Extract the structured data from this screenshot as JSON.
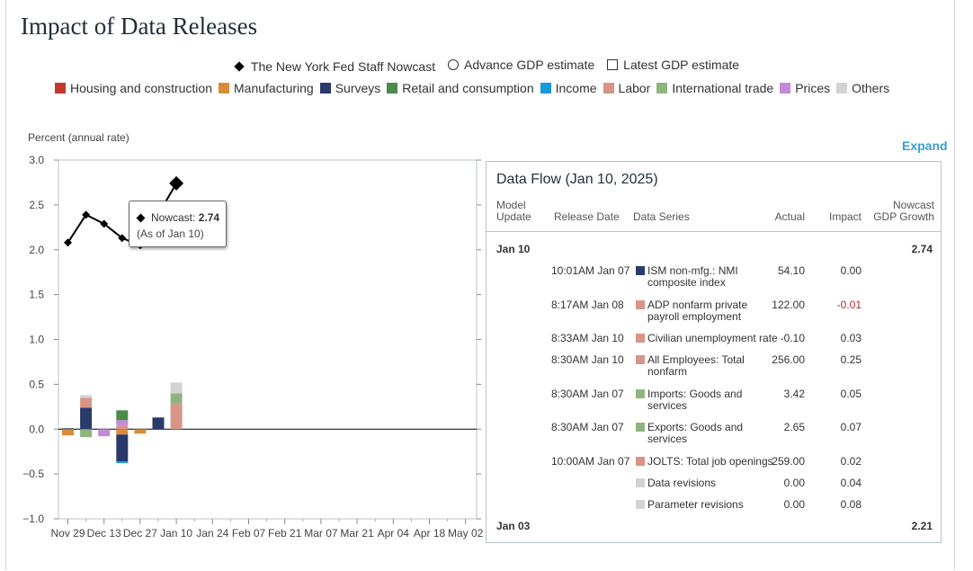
{
  "title": "Impact of Data Releases",
  "legend_top": {
    "nowcast": "The New York Fed Staff Nowcast",
    "advance": "Advance GDP estimate",
    "latest": "Latest GDP estimate"
  },
  "categories": [
    {
      "name": "Housing and construction",
      "color": "#c0392b"
    },
    {
      "name": "Manufacturing",
      "color": "#d98c3a"
    },
    {
      "name": "Surveys",
      "color": "#2a3a6b"
    },
    {
      "name": "Retail and consumption",
      "color": "#4a8a4a"
    },
    {
      "name": "Income",
      "color": "#1a9ad6"
    },
    {
      "name": "Labor",
      "color": "#d99488"
    },
    {
      "name": "International trade",
      "color": "#8fb57e"
    },
    {
      "name": "Prices",
      "color": "#c28ad8"
    },
    {
      "name": "Others",
      "color": "#d3d3d3"
    }
  ],
  "y_axis_title": "Percent (annual rate)",
  "expand_label": "Expand",
  "tooltip": {
    "label": "Nowcast:",
    "value": "2.74",
    "sub": "(As of Jan 10)"
  },
  "chart_data": {
    "type": "bar",
    "title": "",
    "ylabel": "Percent (annual rate)",
    "ylim": [
      -1.0,
      3.0
    ],
    "yticks": [
      "3.0",
      "2.5",
      "2.0",
      "1.5",
      "1.0",
      "0.5",
      "0.0",
      "−0.5",
      "−1.0"
    ],
    "xticks": [
      "Nov 29",
      "Dec 13",
      "Dec 27",
      "Jan 10",
      "Jan 24",
      "Feb 07",
      "Feb 21",
      "Mar 07",
      "Mar 21",
      "Apr 04",
      "Apr 18",
      "May 02"
    ],
    "weeks": [
      "Nov 29",
      "Dec 06",
      "Dec 13",
      "Dec 20",
      "Dec 27",
      "Jan 03",
      "Jan 10"
    ],
    "nowcast": [
      2.08,
      2.39,
      2.29,
      2.13,
      2.05,
      null,
      2.74
    ],
    "stacks": [
      [
        {
          "cat": "Surveys",
          "v": 0.01
        },
        {
          "cat": "Manufacturing",
          "v": -0.07
        }
      ],
      [
        {
          "cat": "Surveys",
          "v": 0.24
        },
        {
          "cat": "Labor",
          "v": 0.11
        },
        {
          "cat": "Others",
          "v": 0.03
        },
        {
          "cat": "International trade",
          "v": -0.09
        }
      ],
      [
        {
          "cat": "Prices",
          "v": -0.08
        }
      ],
      [
        {
          "cat": "Labor",
          "v": 0.04
        },
        {
          "cat": "Prices",
          "v": 0.06
        },
        {
          "cat": "Retail and consumption",
          "v": 0.11
        },
        {
          "cat": "Manufacturing",
          "v": -0.06
        },
        {
          "cat": "Surveys",
          "v": -0.3
        },
        {
          "cat": "Income",
          "v": -0.02
        }
      ],
      [
        {
          "cat": "Manufacturing",
          "v": -0.05
        }
      ],
      [
        {
          "cat": "Surveys",
          "v": 0.13
        }
      ],
      [
        {
          "cat": "Labor",
          "v": 0.28
        },
        {
          "cat": "International trade",
          "v": 0.12
        },
        {
          "cat": "Others",
          "v": 0.12
        }
      ]
    ]
  },
  "panel": {
    "title": "Data Flow (Jan 10, 2025)",
    "headers": {
      "model_update": "Model Update",
      "release_date": "Release Date",
      "data_series": "Data Series",
      "actual": "Actual",
      "impact": "Impact",
      "nowcast": "Nowcast GDP Growth"
    },
    "groups": [
      {
        "date": "Jan 10",
        "nowcast": "2.74"
      },
      {
        "date": "Jan 03",
        "nowcast": "2.21"
      }
    ],
    "rows": [
      {
        "release": "10:01AM Jan 07",
        "series": "ISM non-mfg.: NMI composite index",
        "color": "#2a3a6b",
        "actual": "54.10",
        "impact": "0.00"
      },
      {
        "release": "8:17AM Jan 08",
        "series": "ADP nonfarm private payroll employment",
        "color": "#d99488",
        "actual": "122.00",
        "impact": "-0.01"
      },
      {
        "release": "8:33AM Jan 10",
        "series": "Civilian unemployment rate",
        "color": "#d99488",
        "actual": "-0.10",
        "impact": "0.03"
      },
      {
        "release": "8:30AM Jan 10",
        "series": "All Employees: Total nonfarm",
        "color": "#d99488",
        "actual": "256.00",
        "impact": "0.25"
      },
      {
        "release": "8:30AM Jan 07",
        "series": "Imports: Goods and services",
        "color": "#8fb57e",
        "actual": "3.42",
        "impact": "0.05"
      },
      {
        "release": "8:30AM Jan 07",
        "series": "Exports: Goods and services",
        "color": "#8fb57e",
        "actual": "2.65",
        "impact": "0.07"
      },
      {
        "release": "10:00AM Jan 07",
        "series": "JOLTS: Total job openings",
        "color": "#d99488",
        "actual": "259.00",
        "impact": "0.02"
      },
      {
        "release": "",
        "series": "Data revisions",
        "color": "#d3d3d3",
        "actual": "0.00",
        "impact": "0.04"
      },
      {
        "release": "",
        "series": "Parameter revisions",
        "color": "#d3d3d3",
        "actual": "0.00",
        "impact": "0.08"
      }
    ]
  }
}
